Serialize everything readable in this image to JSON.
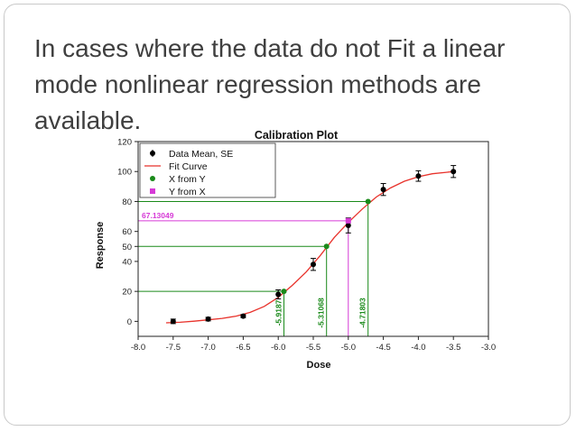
{
  "slide": {
    "heading": "In cases where the data do not Fit a linear mode nonlinear regression methods are available."
  },
  "chart_data": {
    "type": "scatter",
    "title": "Calibration Plot",
    "xlabel": "Dose",
    "ylabel": "Response",
    "xlim": [
      -8.0,
      -3.0
    ],
    "ylim": [
      -10,
      120
    ],
    "x_ticks": [
      "-8.0",
      "-7.5",
      "-7.0",
      "-6.5",
      "-6.0",
      "-5.5",
      "-5.0",
      "-4.5",
      "-4.0",
      "-3.5",
      "-3.0"
    ],
    "y_ticks": [
      "0",
      "20",
      "40",
      "50",
      "60",
      "80",
      "100",
      "120"
    ],
    "grid": false,
    "legend_position": "top-left",
    "legend": [
      "Data Mean, SE",
      "Fit Curve",
      "X from Y",
      "Y from X"
    ],
    "colors": {
      "data": "#000000",
      "fit": "#e8322b",
      "x_from_y": "#1a8a1a",
      "y_from_x": "#d63ad6"
    },
    "series": [
      {
        "name": "Data Mean, SE",
        "x": [
          -7.5,
          -7.0,
          -6.5,
          -6.0,
          -5.5,
          -5.0,
          -4.5,
          -4.0,
          -3.5
        ],
        "y": [
          0,
          1.5,
          3.5,
          18,
          38,
          64,
          88,
          97,
          100
        ],
        "error": [
          1.5,
          1.2,
          1.0,
          3.0,
          4.0,
          5.0,
          4.0,
          3.5,
          4.0
        ]
      },
      {
        "name": "Fit Curve",
        "x": [
          -7.6,
          -7.4,
          -7.2,
          -7.0,
          -6.8,
          -6.6,
          -6.4,
          -6.2,
          -6.0,
          -5.8,
          -5.6,
          -5.4,
          -5.2,
          -5.0,
          -4.8,
          -4.6,
          -4.4,
          -4.2,
          -4.0,
          -3.8,
          -3.6,
          -3.5
        ],
        "y": [
          -1,
          -0.6,
          0.1,
          1.0,
          2.0,
          3.5,
          6.0,
          10.0,
          16.0,
          24.0,
          33.0,
          44.0,
          56.0,
          66.0,
          75.0,
          83.0,
          89.0,
          93.5,
          96.5,
          98.5,
          99.5,
          100.0
        ]
      },
      {
        "name": "X from Y",
        "y": [
          20,
          50,
          80
        ],
        "x": [
          -5.9187,
          -5.31068,
          -4.71803
        ],
        "labels": [
          "-5.9187",
          "-5.31068",
          "-4.71803"
        ]
      },
      {
        "name": "Y from X",
        "x": [
          -5.0
        ],
        "y": [
          67.13049
        ],
        "labels": [
          "67.13049"
        ]
      }
    ]
  }
}
